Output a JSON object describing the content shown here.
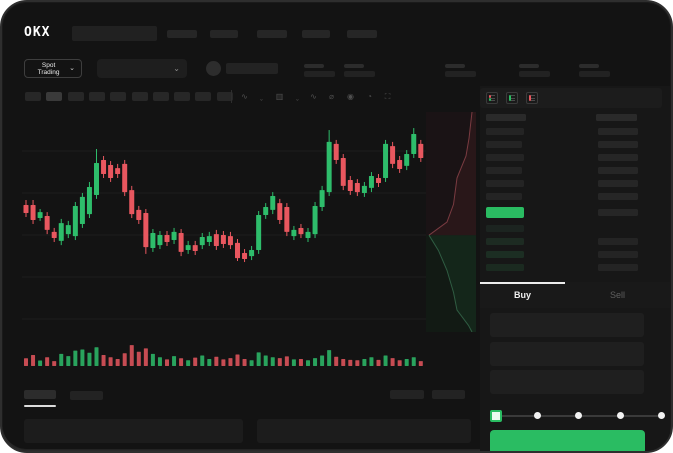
{
  "header": {
    "logo_text": "OKX",
    "nav_placeholder_count": 5
  },
  "market_bar": {
    "pair_selector_label": "Spot Trading",
    "pair_selector_chevron": "⌄",
    "dropdown_chevron": "⌄",
    "stat_pair_count": 5
  },
  "toolbar": {
    "timeframe_count": 10,
    "selected_timeframe_index": 1,
    "icons": [
      {
        "name": "indicator-icon",
        "glyph": "∿"
      },
      {
        "name": "chevron-down-icon",
        "glyph": "ˬ"
      },
      {
        "name": "chart-style-icon",
        "glyph": "▥"
      },
      {
        "name": "chevron-down-icon",
        "glyph": "ˬ"
      },
      {
        "name": "line-tool-icon",
        "glyph": "∿"
      },
      {
        "name": "measure-icon",
        "glyph": "⌀"
      },
      {
        "name": "camera-icon",
        "glyph": "◉"
      },
      {
        "name": "alert-icon",
        "glyph": "◔"
      },
      {
        "name": "fullscreen-icon",
        "glyph": "⛶"
      }
    ]
  },
  "chart_data": {
    "type": "candlestick",
    "title": "",
    "xlabel": "",
    "ylabel": "",
    "ylim": [
      0,
      100
    ],
    "grid": true,
    "up_color": "#2ebd6b",
    "down_color": "#e8575f",
    "candles_ohlc": [
      [
        57.7,
        60.0,
        52.3,
        54.1
      ],
      [
        57.7,
        60.0,
        49.1,
        50.9
      ],
      [
        51.8,
        55.9,
        50.5,
        54.5
      ],
      [
        52.7,
        54.5,
        44.5,
        46.4
      ],
      [
        45.5,
        47.3,
        40.9,
        42.7
      ],
      [
        41.4,
        51.4,
        39.5,
        49.5
      ],
      [
        44.5,
        50.5,
        42.7,
        48.6
      ],
      [
        43.6,
        59.1,
        41.8,
        57.3
      ],
      [
        49.1,
        63.2,
        47.3,
        61.4
      ],
      [
        53.6,
        68.2,
        51.8,
        65.9
      ],
      [
        62.3,
        83.2,
        60.5,
        76.8
      ],
      [
        78.2,
        80.0,
        70.0,
        71.8
      ],
      [
        75.9,
        77.7,
        68.2,
        70.0
      ],
      [
        74.5,
        76.4,
        70.0,
        71.8
      ],
      [
        76.4,
        78.2,
        61.8,
        63.6
      ],
      [
        64.5,
        66.4,
        51.8,
        53.6
      ],
      [
        55.5,
        57.3,
        49.1,
        50.9
      ],
      [
        54.1,
        55.9,
        35.5,
        38.6
      ],
      [
        38.2,
        46.8,
        36.4,
        45.0
      ],
      [
        39.5,
        45.9,
        37.7,
        44.1
      ],
      [
        44.1,
        45.9,
        39.1,
        40.9
      ],
      [
        41.8,
        47.3,
        40.0,
        45.5
      ],
      [
        45.0,
        46.8,
        34.5,
        36.4
      ],
      [
        37.3,
        41.4,
        35.5,
        39.5
      ],
      [
        39.5,
        41.4,
        35.0,
        36.8
      ],
      [
        39.5,
        45.0,
        37.7,
        43.2
      ],
      [
        40.9,
        45.5,
        39.1,
        43.6
      ],
      [
        44.5,
        46.4,
        37.3,
        39.1
      ],
      [
        44.1,
        45.9,
        38.2,
        40.0
      ],
      [
        43.6,
        45.5,
        37.7,
        39.5
      ],
      [
        40.5,
        42.3,
        32.3,
        33.6
      ],
      [
        35.9,
        37.7,
        31.8,
        33.2
      ],
      [
        34.5,
        39.1,
        32.7,
        37.3
      ],
      [
        37.3,
        55.0,
        35.5,
        53.2
      ],
      [
        53.2,
        58.6,
        51.4,
        56.8
      ],
      [
        55.5,
        63.6,
        53.6,
        61.8
      ],
      [
        58.6,
        60.5,
        49.1,
        50.9
      ],
      [
        56.8,
        58.6,
        43.6,
        45.5
      ],
      [
        43.6,
        48.2,
        41.8,
        46.4
      ],
      [
        47.3,
        49.1,
        42.7,
        44.5
      ],
      [
        42.7,
        47.3,
        40.9,
        45.5
      ],
      [
        44.5,
        59.1,
        42.7,
        57.3
      ],
      [
        56.8,
        66.4,
        55.0,
        64.5
      ],
      [
        63.6,
        91.8,
        61.8,
        86.4
      ],
      [
        85.5,
        87.3,
        76.4,
        78.2
      ],
      [
        79.1,
        80.9,
        64.5,
        66.4
      ],
      [
        69.1,
        70.9,
        62.3,
        64.1
      ],
      [
        67.7,
        69.5,
        61.8,
        63.6
      ],
      [
        63.2,
        68.2,
        61.4,
        66.4
      ],
      [
        65.5,
        72.7,
        63.6,
        70.9
      ],
      [
        70.0,
        71.8,
        65.9,
        67.7
      ],
      [
        70.0,
        87.3,
        68.2,
        85.5
      ],
      [
        84.5,
        86.4,
        74.5,
        76.4
      ],
      [
        78.2,
        80.0,
        72.3,
        74.1
      ],
      [
        75.5,
        82.7,
        73.6,
        80.9
      ],
      [
        80.9,
        92.7,
        79.1,
        90.0
      ],
      [
        85.5,
        87.3,
        77.3,
        79.1
      ]
    ],
    "volumes": [
      35,
      50,
      25,
      40,
      22,
      55,
      45,
      70,
      75,
      60,
      85,
      50,
      40,
      32,
      58,
      95,
      65,
      80,
      55,
      40,
      30,
      45,
      35,
      26,
      38,
      48,
      32,
      42,
      30,
      36,
      52,
      32,
      26,
      62,
      48,
      40,
      36,
      44,
      30,
      32,
      26,
      36,
      48,
      72,
      42,
      32,
      28,
      26,
      32,
      40,
      28,
      48,
      36,
      26,
      32,
      40,
      22
    ],
    "depth": {
      "ask_curve": [
        [
          0.92,
          0.0
        ],
        [
          0.86,
          0.12
        ],
        [
          0.8,
          0.2
        ],
        [
          0.62,
          0.3
        ],
        [
          0.55,
          0.42
        ],
        [
          0.42,
          0.5
        ],
        [
          0.06,
          0.56
        ]
      ],
      "bid_curve": [
        [
          0.06,
          0.56
        ],
        [
          0.25,
          0.63
        ],
        [
          0.42,
          0.72
        ],
        [
          0.55,
          0.82
        ],
        [
          0.62,
          0.9
        ],
        [
          0.85,
          0.97
        ],
        [
          0.92,
          1.0
        ]
      ],
      "ask_color": "#7a3b41",
      "bid_color": "#2f5c42"
    }
  },
  "orderbook": {
    "view_modes": [
      "book-combined",
      "book-bids",
      "book-asks"
    ],
    "ask_row_count": 6,
    "bid_row_count": 4,
    "mid_price_color": "#2abc62",
    "up_color": "#2abc62",
    "down_color": "#e8575f"
  },
  "trade_panel": {
    "tabs": [
      {
        "label": "Buy",
        "active": true
      },
      {
        "label": "Sell",
        "active": false
      }
    ],
    "input_count": 3,
    "slider": {
      "stop_count": 5,
      "active_index": 0
    },
    "button_color": "#2abc62"
  },
  "colors": {
    "frame_bg": "#131313",
    "panel_bg": "#171717",
    "accent_green": "#2abc62",
    "accent_red": "#e8575f"
  }
}
